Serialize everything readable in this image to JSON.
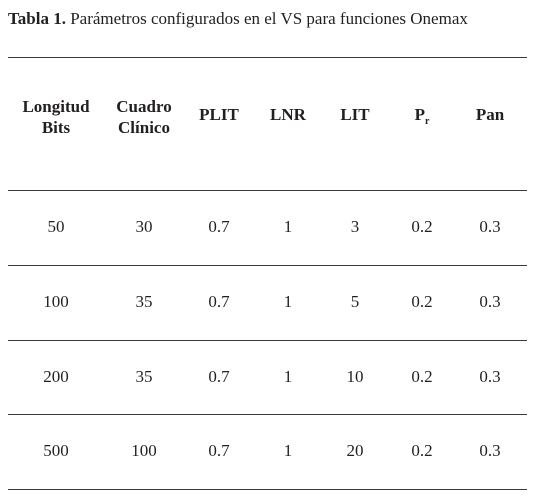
{
  "caption": {
    "label": "Tabla 1.",
    "text": "Parámetros configurados en el VS para funciones Onemax"
  },
  "table": {
    "headers": [
      {
        "lines": [
          "Longitud",
          "Bits"
        ]
      },
      {
        "lines": [
          "Cuadro",
          "Clínico"
        ]
      },
      {
        "lines": [
          "PLIT"
        ]
      },
      {
        "lines": [
          "LNR"
        ]
      },
      {
        "lines": [
          "LIT"
        ]
      },
      {
        "lines": [
          "P"
        ],
        "sub": "r"
      },
      {
        "lines": [
          "Pan"
        ]
      }
    ],
    "rows": [
      [
        50,
        30,
        0.7,
        1,
        3,
        0.2,
        0.3
      ],
      [
        100,
        35,
        0.7,
        1,
        5,
        0.2,
        0.3
      ],
      [
        200,
        35,
        0.7,
        1,
        10,
        0.2,
        0.3
      ],
      [
        500,
        100,
        0.7,
        1,
        20,
        0.2,
        0.3
      ]
    ]
  }
}
